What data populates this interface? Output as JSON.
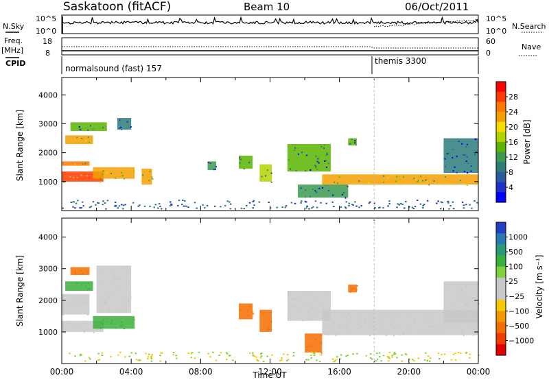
{
  "header": {
    "title": "Saskatoon (fitACF)",
    "beam": "Beam 10",
    "date": "06/Oct/2011"
  },
  "nsky_panel": {
    "label": "N.Sky",
    "right_label": "N.Search",
    "left_ticks": [
      "10^5",
      "10^0"
    ],
    "right_ticks": [
      "10^5",
      "10^0"
    ]
  },
  "freq_panel": {
    "label_top": "Freq.",
    "label_unit": "[MHz]",
    "right_label": "Nave",
    "left_ticks": [
      "18",
      "8"
    ],
    "right_ticks": [
      "60",
      "0"
    ]
  },
  "cpid_panel": {
    "label": "CPID",
    "modes": [
      {
        "name": "normalsound (fast) 157",
        "start_hour": 0
      },
      {
        "name": "themis 3300",
        "start_hour": 18.0
      }
    ]
  },
  "chart_data": [
    {
      "type": "heatmap",
      "name": "power",
      "ylabel": "Slant Range [km]",
      "ylim": [
        0,
        4600
      ],
      "yticks": [
        1000,
        2000,
        3000,
        4000
      ],
      "xlim": [
        0,
        24
      ],
      "colorbar": {
        "label": "Power [dB]",
        "ticks": [
          "28",
          "24",
          "20",
          "16",
          "12",
          "8",
          "4"
        ],
        "colors": [
          "#ff0000",
          "#ff3a00",
          "#ff7800",
          "#f5a000",
          "#f3dc00",
          "#b4d200",
          "#5ab400",
          "#3c9a50",
          "#2c7d7a",
          "#2a5aa0",
          "#2030c8",
          "#0000ff"
        ]
      },
      "echo_regions": [
        {
          "t0": 0.0,
          "t1": 1.6,
          "r0": 1550,
          "r1": 1700,
          "v": 24
        },
        {
          "t0": 0.0,
          "t1": 2.4,
          "r0": 1000,
          "r1": 1350,
          "v": 26
        },
        {
          "t0": 0.2,
          "t1": 1.8,
          "r0": 2300,
          "r1": 2600,
          "v": 22
        },
        {
          "t0": 0.5,
          "t1": 2.6,
          "r0": 2750,
          "r1": 3050,
          "v": 14
        },
        {
          "t0": 1.8,
          "t1": 4.2,
          "r0": 1100,
          "r1": 1500,
          "v": 22
        },
        {
          "t0": 3.2,
          "t1": 4.0,
          "r0": 2800,
          "r1": 3200,
          "v": 10
        },
        {
          "t0": 4.6,
          "t1": 5.2,
          "r0": 900,
          "r1": 1450,
          "v": 22
        },
        {
          "t0": 8.4,
          "t1": 8.9,
          "r0": 1400,
          "r1": 1700,
          "v": 12
        },
        {
          "t0": 10.2,
          "t1": 11.0,
          "r0": 1450,
          "r1": 1900,
          "v": 14
        },
        {
          "t0": 11.4,
          "t1": 12.1,
          "r0": 1000,
          "r1": 1600,
          "v": 16
        },
        {
          "t0": 13.0,
          "t1": 15.5,
          "r0": 1350,
          "r1": 2300,
          "v": 14
        },
        {
          "t0": 13.6,
          "t1": 16.5,
          "r0": 450,
          "r1": 900,
          "v": 12
        },
        {
          "t0": 15.0,
          "t1": 24.0,
          "r0": 900,
          "r1": 1250,
          "v": 22
        },
        {
          "t0": 16.5,
          "t1": 17.0,
          "r0": 2250,
          "r1": 2500,
          "v": 14
        },
        {
          "t0": 22.0,
          "t1": 24.0,
          "r0": 1300,
          "r1": 2500,
          "v": 10
        }
      ]
    },
    {
      "type": "heatmap",
      "name": "velocity",
      "xlabel": "Time UT",
      "ylabel": "Slant Range [km]",
      "ylim": [
        0,
        4600
      ],
      "yticks": [
        1000,
        2000,
        3000,
        4000
      ],
      "xlim": [
        0,
        24
      ],
      "xticks": [
        "00:00",
        "04:00",
        "08:00",
        "12:00",
        "16:00",
        "20:00",
        "00:00"
      ],
      "colorbar": {
        "label": "Velocity [m s⁻¹]",
        "ticks": [
          "1000",
          "500",
          "100",
          "25",
          "−25",
          "−100",
          "−500",
          "−1000"
        ],
        "colors": [
          "#2040c8",
          "#2a78b4",
          "#2a9a78",
          "#3cb03c",
          "#7ed23c",
          "#c8c8c8",
          "#c8c8c8",
          "#f5c800",
          "#f59600",
          "#f56e00",
          "#f03c00",
          "#e00000"
        ]
      },
      "echo_regions": [
        {
          "t0": 0.0,
          "t1": 2.4,
          "r0": 1000,
          "r1": 1350,
          "v": 40
        },
        {
          "t0": 0.0,
          "t1": 1.6,
          "r0": 1550,
          "r1": 2200,
          "v": 0
        },
        {
          "t0": 0.2,
          "t1": 1.8,
          "r0": 2300,
          "r1": 2600,
          "v": 150
        },
        {
          "t0": 0.5,
          "t1": 1.6,
          "r0": 2800,
          "r1": 3050,
          "v": -250
        },
        {
          "t0": 1.8,
          "t1": 4.2,
          "r0": 1100,
          "r1": 1500,
          "v": 200
        },
        {
          "t0": 2.0,
          "t1": 4.0,
          "r0": 1600,
          "r1": 3100,
          "v": 0
        },
        {
          "t0": 10.2,
          "t1": 11.0,
          "r0": 1400,
          "r1": 1900,
          "v": -250
        },
        {
          "t0": 11.4,
          "t1": 12.1,
          "r0": 1000,
          "r1": 1700,
          "v": -300
        },
        {
          "t0": 13.0,
          "t1": 15.5,
          "r0": 1350,
          "r1": 2300,
          "v": 0
        },
        {
          "t0": 14.0,
          "t1": 15.0,
          "r0": 350,
          "r1": 950,
          "v": -300
        },
        {
          "t0": 15.0,
          "t1": 24.0,
          "r0": 900,
          "r1": 1700,
          "v": 0
        },
        {
          "t0": 16.5,
          "t1": 17.0,
          "r0": 2250,
          "r1": 2500,
          "v": -250
        },
        {
          "t0": 22.0,
          "t1": 24.0,
          "r0": 1300,
          "r1": 2600,
          "v": 0
        }
      ]
    }
  ]
}
